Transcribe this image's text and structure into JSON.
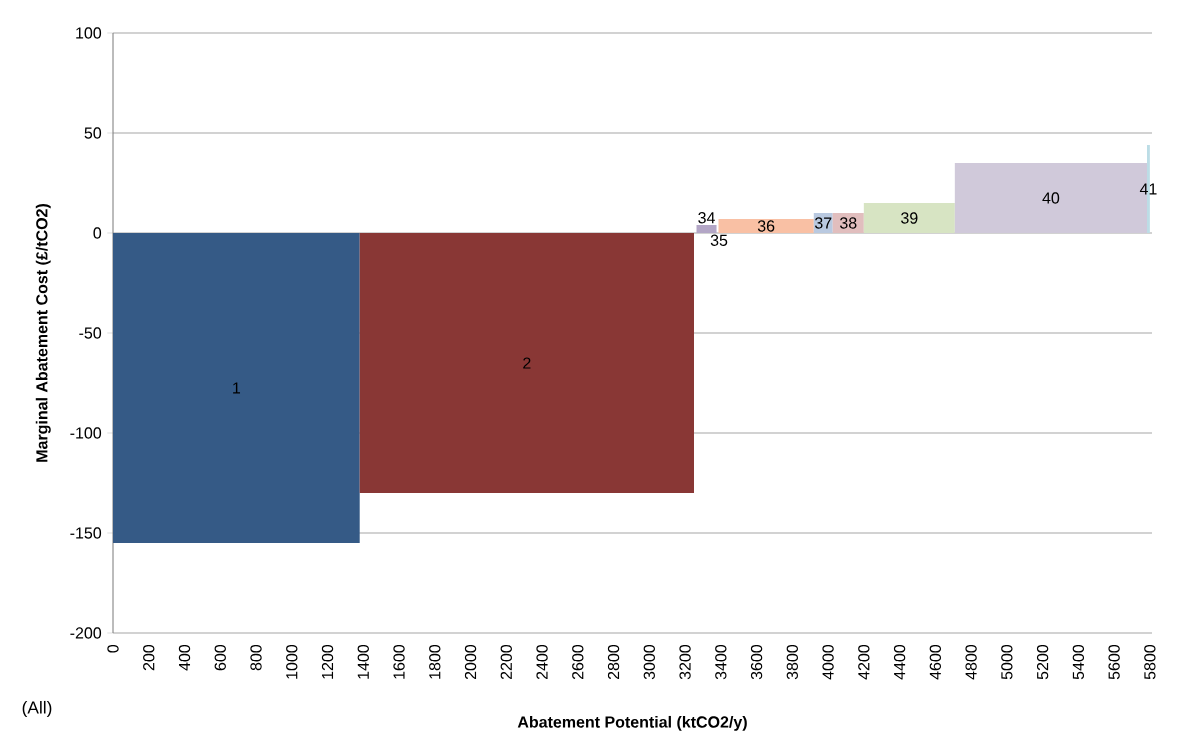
{
  "chart_data": {
    "type": "area",
    "xlabel": "Abatement Potential (ktCO2/y)",
    "ylabel": "Marginal Abatement Cost (£/tCO2)",
    "annotations": [
      "(All)",
      {
        "text": "35",
        "x": 3390,
        "y": 0
      }
    ],
    "xlim": [
      0,
      5812
    ],
    "ylim": [
      -200,
      100
    ],
    "xticks": [
      0,
      200,
      400,
      600,
      800,
      1000,
      1200,
      1400,
      1600,
      1800,
      2000,
      2200,
      2400,
      2600,
      2800,
      3000,
      3200,
      3400,
      3600,
      3800,
      4000,
      4200,
      4400,
      4600,
      4800,
      5000,
      5200,
      5400,
      5600,
      5800
    ],
    "yticks": [
      -200,
      -150,
      -100,
      -50,
      0,
      50,
      100
    ],
    "grid": "y",
    "series": [
      {
        "name": "1",
        "color": "#355a86",
        "x": [
          0,
          1380
        ],
        "values": [
          -155,
          -155
        ]
      },
      {
        "name": "2",
        "color": "#893735",
        "x": [
          1380,
          3250
        ],
        "values": [
          -130,
          -130
        ]
      },
      {
        "name": "34",
        "color": "#b3a6c6",
        "x": [
          3264,
          3376
        ],
        "values": [
          4,
          4
        ]
      },
      {
        "name": "36",
        "color": "#f9c0a4",
        "x": [
          3387,
          3920
        ],
        "values": [
          7,
          7
        ]
      },
      {
        "name": "37",
        "color": "#b9c9e0",
        "x": [
          3920,
          4026
        ],
        "values": [
          10,
          10
        ]
      },
      {
        "name": "38",
        "color": "#e1bebe",
        "x": [
          4026,
          4200
        ],
        "values": [
          10,
          10
        ]
      },
      {
        "name": "39",
        "color": "#d7e4c3",
        "x": [
          4200,
          4709
        ],
        "values": [
          15,
          15
        ]
      },
      {
        "name": "40",
        "color": "#d0c9da",
        "x": [
          4709,
          5784
        ],
        "values": [
          35,
          35
        ]
      },
      {
        "name": "41",
        "color": "#bcdde6",
        "x": [
          5784,
          5800
        ],
        "values": [
          44,
          44
        ]
      }
    ]
  }
}
